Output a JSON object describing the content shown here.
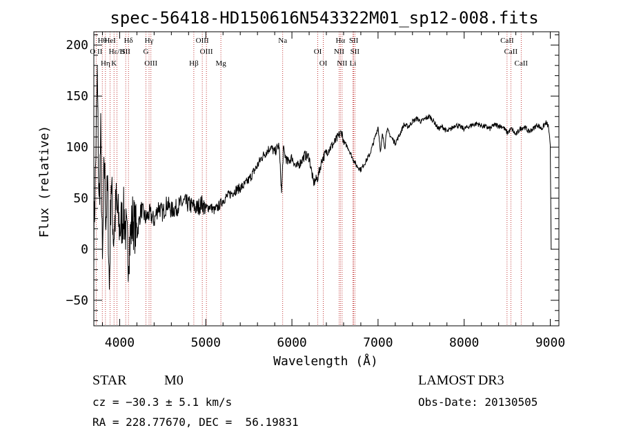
{
  "chart_data": {
    "type": "line",
    "title": "spec-56418-HD150616N543322M01_sp12-008.fits",
    "xlabel": "Wavelength (Å)",
    "ylabel": "Flux (relative)",
    "xlim": [
      3700,
      9100
    ],
    "ylim": [
      -75,
      213
    ],
    "xticks": [
      4000,
      5000,
      6000,
      7000,
      8000,
      9000
    ],
    "yticks": [
      -50,
      0,
      50,
      100,
      150,
      200
    ],
    "xtick_labels": [
      "4000",
      "5000",
      "6000",
      "7000",
      "8000",
      "9000"
    ],
    "ytick_labels": [
      "−50",
      "0",
      "50",
      "100",
      "150",
      "200"
    ],
    "series": [
      {
        "x": [
          3700,
          3720,
          3740,
          3760,
          3780,
          3800,
          3820,
          3840,
          3860,
          3880,
          3900,
          3930,
          3960,
          4000,
          4050,
          4100,
          4150,
          4200,
          4250,
          4300,
          4350,
          4400,
          4450,
          4500,
          4550,
          4600,
          4650,
          4700,
          4750,
          4800,
          4850,
          4900,
          4950,
          5000,
          5050,
          5100,
          5150,
          5200,
          5250,
          5300,
          5350,
          5400,
          5450,
          5500,
          5550,
          5600,
          5650,
          5700,
          5750,
          5800,
          5850,
          5880,
          5900,
          5920,
          5950,
          6000,
          6050,
          6100,
          6150,
          6200,
          6250,
          6300,
          6350,
          6400,
          6450,
          6500,
          6550,
          6580,
          6600,
          6650,
          6700,
          6750,
          6800,
          6850,
          6900,
          6950,
          7000,
          7030,
          7050,
          7080,
          7100,
          7150,
          7200,
          7250,
          7300,
          7350,
          7400,
          7450,
          7500,
          7550,
          7600,
          7650,
          7700,
          7750,
          7800,
          7850,
          7900,
          7950,
          8000,
          8050,
          8100,
          8150,
          8200,
          8250,
          8300,
          8350,
          8400,
          8450,
          8500,
          8550,
          8600,
          8650,
          8700,
          8750,
          8800,
          8850,
          8900,
          8950,
          8980,
          9000,
          9010
        ],
        "y": [
          10,
          80,
          170,
          40,
          110,
          -20,
          90,
          30,
          60,
          -40,
          70,
          10,
          45,
          20,
          35,
          -5,
          30,
          15,
          40,
          30,
          35,
          28,
          42,
          35,
          45,
          38,
          40,
          44,
          46,
          44,
          42,
          40,
          45,
          40,
          42,
          38,
          42,
          48,
          52,
          55,
          58,
          60,
          63,
          68,
          75,
          82,
          90,
          95,
          100,
          95,
          102,
          55,
          98,
          92,
          85,
          90,
          80,
          85,
          92,
          90,
          65,
          70,
          88,
          95,
          100,
          105,
          112,
          115,
          105,
          100,
          90,
          82,
          78,
          85,
          92,
          105,
          120,
          95,
          112,
          100,
          118,
          110,
          104,
          112,
          122,
          120,
          125,
          128,
          125,
          128,
          130,
          125,
          118,
          120,
          115,
          118,
          122,
          120,
          118,
          120,
          122,
          123,
          121,
          120,
          118,
          122,
          121,
          120,
          114,
          118,
          112,
          118,
          120,
          115,
          118,
          122,
          118,
          124,
          120,
          100,
          0
        ]
      }
    ],
    "line_labels": [
      {
        "name": "Hθ",
        "wavelength": 3798
      },
      {
        "name": "O II",
        "wavelength": 3727
      },
      {
        "name": "K",
        "wavelength": 3934
      },
      {
        "name": "HeI",
        "wavelength": 3889
      },
      {
        "name": "Hε/H",
        "wavelength": 3968
      },
      {
        "name": "Hη",
        "wavelength": 3835
      },
      {
        "name": "Hδ",
        "wavelength": 4102
      },
      {
        "name": "SII",
        "wavelength": 4070
      },
      {
        "name": "OIII",
        "wavelength": 4363
      },
      {
        "name": "Hγ",
        "wavelength": 4341
      },
      {
        "name": "G",
        "wavelength": 4305
      },
      {
        "name": "Hβ",
        "wavelength": 4861
      },
      {
        "name": "OIII",
        "wavelength": 4959
      },
      {
        "name": "OIII",
        "wavelength": 5007
      },
      {
        "name": "Mg",
        "wavelength": 5175
      },
      {
        "name": "Na",
        "wavelength": 5893
      },
      {
        "name": "OI",
        "wavelength": 6300
      },
      {
        "name": "OI",
        "wavelength": 6364
      },
      {
        "name": "Hα",
        "wavelength": 6563
      },
      {
        "name": "NII",
        "wavelength": 6548
      },
      {
        "name": "NII",
        "wavelength": 6583
      },
      {
        "name": "SII",
        "wavelength": 6717
      },
      {
        "name": "SII",
        "wavelength": 6731
      },
      {
        "name": "Li",
        "wavelength": 6708
      },
      {
        "name": "CaII",
        "wavelength": 8498
      },
      {
        "name": "CaII",
        "wavelength": 8542
      },
      {
        "name": "CaII",
        "wavelength": 8662
      }
    ],
    "grid": false,
    "legend": "none"
  },
  "info": {
    "object_class": "STAR",
    "subclass": "M0",
    "survey": "LAMOST DR3",
    "cz": "cz = −30.3 ± 5.1 km/s",
    "obs_date": "Obs-Date: 20130505",
    "coords": "RA = 228.77670, DEC =  56.19831"
  }
}
